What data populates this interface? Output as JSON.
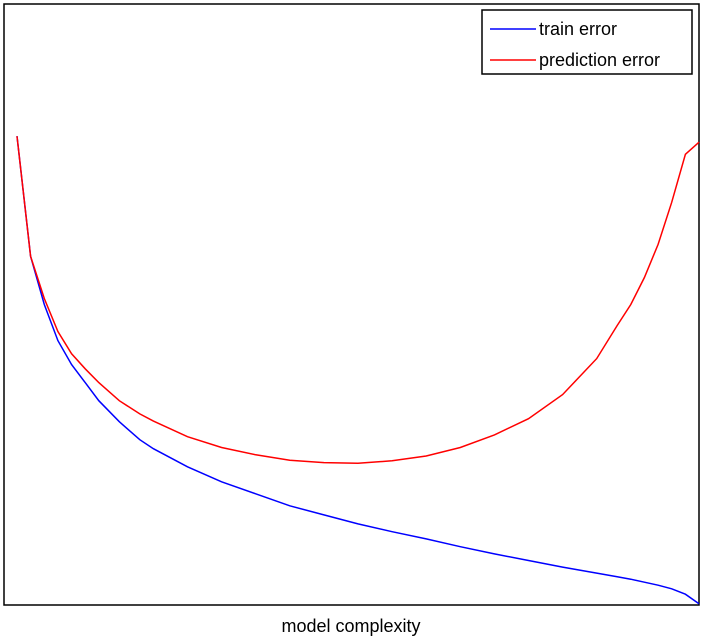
{
  "chart_data": {
    "type": "line",
    "title": "",
    "xlabel": "model complexity",
    "ylabel": "",
    "xlim": [
      0,
      1
    ],
    "ylim": [
      0,
      1
    ],
    "grid": false,
    "ticks_shown": false,
    "legend_position": "top-right",
    "x": [
      0.0,
      0.02,
      0.04,
      0.06,
      0.08,
      0.1,
      0.12,
      0.15,
      0.18,
      0.2,
      0.25,
      0.3,
      0.35,
      0.4,
      0.45,
      0.5,
      0.55,
      0.6,
      0.65,
      0.7,
      0.75,
      0.8,
      0.85,
      0.88,
      0.9,
      0.92,
      0.94,
      0.96,
      0.98,
      1.0
    ],
    "series": [
      {
        "name": "train error",
        "color": "#0000ff",
        "values": [
          0.78,
          0.58,
          0.5,
          0.44,
          0.4,
          0.37,
          0.34,
          0.305,
          0.275,
          0.26,
          0.23,
          0.205,
          0.185,
          0.165,
          0.15,
          0.135,
          0.122,
          0.11,
          0.097,
          0.085,
          0.074,
          0.063,
          0.053,
          0.047,
          0.043,
          0.038,
          0.033,
          0.027,
          0.018,
          0.002
        ]
      },
      {
        "name": "prediction error",
        "color": "#ff0000",
        "values": [
          0.78,
          0.58,
          0.51,
          0.455,
          0.418,
          0.393,
          0.37,
          0.34,
          0.318,
          0.306,
          0.28,
          0.262,
          0.25,
          0.241,
          0.237,
          0.236,
          0.24,
          0.248,
          0.262,
          0.283,
          0.31,
          0.35,
          0.41,
          0.465,
          0.5,
          0.545,
          0.6,
          0.67,
          0.75,
          0.77
        ]
      }
    ]
  },
  "colors": {
    "axes": "#000000",
    "background": "#ffffff"
  }
}
